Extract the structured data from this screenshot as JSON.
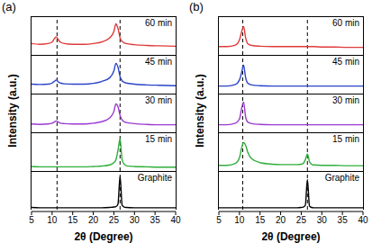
{
  "chart_data": [
    {
      "type": "line",
      "title": "(a)",
      "x_label": "2θ (Degree)",
      "y_label": "Intensity (a.u.)",
      "x": [
        5,
        7,
        9,
        10,
        10.5,
        11,
        11.5,
        12,
        13,
        15,
        18,
        20,
        22,
        24,
        25,
        25.5,
        26,
        26.5,
        27,
        27.5,
        28,
        30,
        33,
        36,
        40
      ],
      "xlim": [
        5,
        40
      ],
      "xticks": [
        5,
        10,
        15,
        20,
        25,
        30,
        35,
        40
      ],
      "ylim": [
        0,
        1
      ],
      "tick_labels": "x",
      "reference_lines": [
        11.2,
        26.5
      ],
      "series": [
        {
          "name": "60 min",
          "color": "#e03a3a",
          "values": [
            0.3,
            0.28,
            0.3,
            0.34,
            0.42,
            0.48,
            0.4,
            0.34,
            0.3,
            0.28,
            0.28,
            0.3,
            0.34,
            0.45,
            0.62,
            0.82,
            0.7,
            0.45,
            0.36,
            0.32,
            0.3,
            0.27,
            0.25,
            0.24,
            0.23
          ]
        },
        {
          "name": "45 min",
          "color": "#2a44c8",
          "values": [
            0.25,
            0.24,
            0.25,
            0.28,
            0.32,
            0.36,
            0.31,
            0.28,
            0.26,
            0.25,
            0.25,
            0.27,
            0.32,
            0.42,
            0.6,
            0.8,
            0.7,
            0.45,
            0.34,
            0.3,
            0.28,
            0.25,
            0.23,
            0.22,
            0.21
          ]
        },
        {
          "name": "30 min",
          "color": "#9a3ad0",
          "values": [
            0.22,
            0.21,
            0.22,
            0.24,
            0.27,
            0.3,
            0.27,
            0.24,
            0.23,
            0.22,
            0.22,
            0.24,
            0.28,
            0.38,
            0.55,
            0.75,
            0.68,
            0.45,
            0.33,
            0.28,
            0.26,
            0.23,
            0.21,
            0.2,
            0.2
          ]
        },
        {
          "name": "15 min",
          "color": "#2fae3a",
          "values": [
            0.12,
            0.11,
            0.11,
            0.11,
            0.11,
            0.11,
            0.11,
            0.11,
            0.11,
            0.11,
            0.11,
            0.12,
            0.13,
            0.16,
            0.22,
            0.3,
            0.55,
            0.85,
            0.3,
            0.18,
            0.14,
            0.12,
            0.11,
            0.1,
            0.1
          ]
        },
        {
          "name": "Graphite",
          "color": "#000000",
          "values": [
            0.06,
            0.05,
            0.05,
            0.05,
            0.05,
            0.05,
            0.05,
            0.05,
            0.05,
            0.05,
            0.05,
            0.05,
            0.05,
            0.06,
            0.07,
            0.08,
            0.15,
            0.88,
            0.12,
            0.07,
            0.06,
            0.05,
            0.05,
            0.05,
            0.05
          ]
        }
      ]
    },
    {
      "type": "line",
      "title": "(b)",
      "x_label": "2θ (Degree)",
      "y_label": "Intensity (a.u.)",
      "x": [
        5,
        7,
        9,
        10,
        10.5,
        11,
        11.5,
        12,
        13,
        15,
        18,
        20,
        22,
        24,
        25,
        25.5,
        26,
        26.5,
        27,
        27.5,
        28,
        30,
        33,
        36,
        40
      ],
      "xlim": [
        5,
        40
      ],
      "xticks": [
        5,
        10,
        15,
        20,
        25,
        30,
        35,
        40
      ],
      "ylim": [
        0,
        1
      ],
      "tick_labels": "x",
      "reference_lines": [
        10.8,
        26.5
      ],
      "series": [
        {
          "name": "60 min",
          "color": "#e03a3a",
          "values": [
            0.22,
            0.22,
            0.26,
            0.4,
            0.6,
            0.75,
            0.45,
            0.3,
            0.25,
            0.23,
            0.22,
            0.22,
            0.22,
            0.22,
            0.22,
            0.22,
            0.22,
            0.22,
            0.22,
            0.22,
            0.22,
            0.21,
            0.21,
            0.2,
            0.2
          ]
        },
        {
          "name": "45 min",
          "color": "#2a44c8",
          "values": [
            0.2,
            0.2,
            0.24,
            0.36,
            0.55,
            0.75,
            0.42,
            0.28,
            0.23,
            0.21,
            0.2,
            0.2,
            0.2,
            0.2,
            0.2,
            0.2,
            0.2,
            0.2,
            0.2,
            0.2,
            0.2,
            0.2,
            0.2,
            0.2,
            0.2
          ]
        },
        {
          "name": "30 min",
          "color": "#9a3ad0",
          "values": [
            0.2,
            0.2,
            0.24,
            0.35,
            0.62,
            0.8,
            0.4,
            0.27,
            0.23,
            0.21,
            0.2,
            0.2,
            0.2,
            0.2,
            0.2,
            0.2,
            0.2,
            0.2,
            0.2,
            0.2,
            0.2,
            0.2,
            0.2,
            0.2,
            0.2
          ]
        },
        {
          "name": "15 min",
          "color": "#2fae3a",
          "values": [
            0.15,
            0.15,
            0.2,
            0.35,
            0.6,
            0.75,
            0.68,
            0.5,
            0.32,
            0.22,
            0.18,
            0.17,
            0.17,
            0.17,
            0.18,
            0.2,
            0.3,
            0.45,
            0.25,
            0.18,
            0.16,
            0.15,
            0.15,
            0.14,
            0.14
          ]
        },
        {
          "name": "Graphite",
          "color": "#000000",
          "values": [
            0.05,
            0.05,
            0.05,
            0.05,
            0.05,
            0.05,
            0.05,
            0.05,
            0.05,
            0.05,
            0.05,
            0.05,
            0.05,
            0.05,
            0.06,
            0.07,
            0.12,
            0.8,
            0.1,
            0.06,
            0.05,
            0.05,
            0.05,
            0.05,
            0.05
          ]
        }
      ]
    }
  ]
}
